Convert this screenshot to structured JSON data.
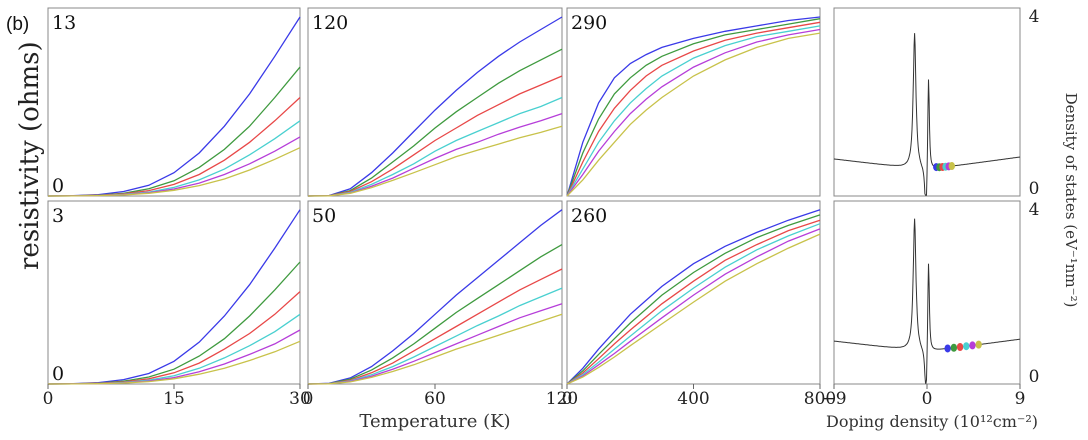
{
  "figure_tag": "(b)",
  "y_axis_title": "resistivity (ohms)",
  "x_axis_title": "Temperature (K)",
  "right_x_axis_title": "Doping density (10¹²cm⁻²)",
  "right_y_axis_title": "Density of states (eV⁻¹nm⁻²)",
  "colors": [
    "#3a3ae8",
    "#3f9a3f",
    "#e84848",
    "#49d0d0",
    "#b63ed9",
    "#c8c24a"
  ],
  "chart_data": [
    {
      "type": "line",
      "panel_label": "13",
      "y_label": "0",
      "xlim": [
        0,
        30
      ],
      "ylim": [
        0,
        1.05
      ],
      "x_ticks": [],
      "x_tick_labels": [],
      "x": [
        0,
        3,
        6,
        9,
        12,
        15,
        18,
        21,
        24,
        27,
        30
      ],
      "series": [
        {
          "values": [
            0,
            0.002,
            0.008,
            0.025,
            0.06,
            0.13,
            0.24,
            0.39,
            0.57,
            0.78,
            1.0
          ]
        },
        {
          "values": [
            0,
            0.001,
            0.005,
            0.015,
            0.04,
            0.085,
            0.16,
            0.26,
            0.39,
            0.55,
            0.72
          ]
        },
        {
          "values": [
            0,
            0.001,
            0.004,
            0.012,
            0.03,
            0.065,
            0.12,
            0.2,
            0.3,
            0.42,
            0.55
          ]
        },
        {
          "values": [
            0,
            0.001,
            0.003,
            0.009,
            0.022,
            0.048,
            0.09,
            0.15,
            0.23,
            0.32,
            0.42
          ]
        },
        {
          "values": [
            0,
            0.001,
            0.002,
            0.007,
            0.018,
            0.039,
            0.072,
            0.12,
            0.18,
            0.25,
            0.33
          ]
        },
        {
          "values": [
            0,
            0.0005,
            0.002,
            0.006,
            0.015,
            0.032,
            0.058,
            0.095,
            0.145,
            0.205,
            0.27
          ]
        }
      ]
    },
    {
      "type": "line",
      "panel_label": "120",
      "y_label": "",
      "xlim": [
        0,
        120
      ],
      "ylim": [
        0,
        1.05
      ],
      "x_ticks": [],
      "x_tick_labels": [],
      "x": [
        0,
        10,
        20,
        30,
        40,
        50,
        60,
        70,
        80,
        90,
        100,
        110,
        120
      ],
      "series": [
        {
          "values": [
            0,
            0.003,
            0.04,
            0.13,
            0.24,
            0.36,
            0.48,
            0.59,
            0.69,
            0.78,
            0.86,
            0.93,
            1.0
          ]
        },
        {
          "values": [
            0,
            0.002,
            0.03,
            0.1,
            0.19,
            0.28,
            0.38,
            0.47,
            0.55,
            0.63,
            0.7,
            0.76,
            0.82
          ]
        },
        {
          "values": [
            0,
            0.002,
            0.025,
            0.08,
            0.15,
            0.23,
            0.31,
            0.38,
            0.45,
            0.51,
            0.57,
            0.62,
            0.67
          ]
        },
        {
          "values": [
            0,
            0.001,
            0.02,
            0.065,
            0.12,
            0.18,
            0.25,
            0.31,
            0.36,
            0.41,
            0.46,
            0.5,
            0.55
          ]
        },
        {
          "values": [
            0,
            0.001,
            0.017,
            0.055,
            0.1,
            0.155,
            0.21,
            0.26,
            0.3,
            0.345,
            0.385,
            0.42,
            0.46
          ]
        },
        {
          "values": [
            0,
            0.001,
            0.015,
            0.047,
            0.087,
            0.13,
            0.175,
            0.22,
            0.255,
            0.29,
            0.325,
            0.355,
            0.39
          ]
        }
      ]
    },
    {
      "type": "line",
      "panel_label": "290",
      "y_label": "",
      "xlim": [
        0,
        800
      ],
      "ylim": [
        0,
        1.05
      ],
      "x_ticks": [],
      "x_tick_labels": [],
      "x": [
        0,
        50,
        100,
        150,
        200,
        250,
        300,
        400,
        500,
        600,
        700,
        800
      ],
      "series": [
        {
          "values": [
            0,
            0.3,
            0.52,
            0.66,
            0.74,
            0.79,
            0.83,
            0.88,
            0.92,
            0.95,
            0.98,
            1.0
          ]
        },
        {
          "values": [
            0,
            0.24,
            0.43,
            0.57,
            0.66,
            0.73,
            0.78,
            0.85,
            0.9,
            0.93,
            0.96,
            0.99
          ]
        },
        {
          "values": [
            0,
            0.19,
            0.36,
            0.49,
            0.59,
            0.67,
            0.73,
            0.81,
            0.87,
            0.91,
            0.94,
            0.97
          ]
        },
        {
          "values": [
            0,
            0.15,
            0.3,
            0.42,
            0.52,
            0.6,
            0.67,
            0.77,
            0.84,
            0.89,
            0.92,
            0.95
          ]
        },
        {
          "values": [
            0,
            0.12,
            0.25,
            0.36,
            0.46,
            0.54,
            0.61,
            0.72,
            0.8,
            0.86,
            0.9,
            0.93
          ]
        },
        {
          "values": [
            0,
            0.09,
            0.2,
            0.3,
            0.4,
            0.48,
            0.55,
            0.67,
            0.76,
            0.83,
            0.88,
            0.91
          ]
        }
      ]
    },
    {
      "type": "line",
      "panel_label": "",
      "y_label": "",
      "xlim": [
        -9,
        9
      ],
      "ylim": [
        0,
        4
      ],
      "right_ticks": [
        "4",
        "0"
      ],
      "x_ticks": [],
      "x_tick_labels": [],
      "series": [
        {
          "name": "",
          "values": []
        }
      ],
      "markers_x": [
        0.9,
        1.2,
        1.5,
        1.8,
        2.1,
        2.4
      ]
    },
    {
      "type": "line",
      "panel_label": "3",
      "y_label": "0",
      "xlim": [
        0,
        30
      ],
      "ylim": [
        0,
        1.05
      ],
      "x_ticks": [
        0,
        15,
        30
      ],
      "x_tick_labels": [
        "0",
        "15",
        "30"
      ],
      "x": [
        0,
        3,
        6,
        9,
        12,
        15,
        18,
        21,
        24,
        27,
        30
      ],
      "series": [
        {
          "values": [
            0,
            0.002,
            0.008,
            0.025,
            0.06,
            0.13,
            0.24,
            0.39,
            0.57,
            0.78,
            1.0
          ]
        },
        {
          "values": [
            0,
            0.001,
            0.005,
            0.016,
            0.04,
            0.085,
            0.16,
            0.26,
            0.39,
            0.54,
            0.7
          ]
        },
        {
          "values": [
            0,
            0.001,
            0.004,
            0.012,
            0.03,
            0.064,
            0.12,
            0.2,
            0.29,
            0.4,
            0.53
          ]
        },
        {
          "values": [
            0,
            0.001,
            0.003,
            0.009,
            0.022,
            0.047,
            0.09,
            0.15,
            0.22,
            0.3,
            0.4
          ]
        },
        {
          "values": [
            0,
            0.001,
            0.002,
            0.007,
            0.017,
            0.037,
            0.07,
            0.115,
            0.17,
            0.23,
            0.31
          ]
        },
        {
          "values": [
            0,
            0.0005,
            0.002,
            0.006,
            0.014,
            0.03,
            0.056,
            0.09,
            0.135,
            0.185,
            0.245
          ]
        }
      ]
    },
    {
      "type": "line",
      "panel_label": "50",
      "y_label": "",
      "xlim": [
        0,
        120
      ],
      "ylim": [
        0,
        1.05
      ],
      "x_ticks": [
        0,
        60,
        120
      ],
      "x_tick_labels": [
        "0",
        "60",
        "120"
      ],
      "x": [
        0,
        10,
        20,
        30,
        40,
        50,
        60,
        70,
        80,
        90,
        100,
        110,
        120
      ],
      "series": [
        {
          "values": [
            0,
            0.004,
            0.035,
            0.1,
            0.19,
            0.29,
            0.4,
            0.51,
            0.61,
            0.71,
            0.81,
            0.91,
            1.0
          ]
        },
        {
          "values": [
            0,
            0.003,
            0.028,
            0.08,
            0.15,
            0.23,
            0.32,
            0.41,
            0.49,
            0.57,
            0.65,
            0.73,
            0.8
          ]
        },
        {
          "values": [
            0,
            0.002,
            0.022,
            0.064,
            0.12,
            0.19,
            0.26,
            0.33,
            0.4,
            0.47,
            0.54,
            0.6,
            0.66
          ]
        },
        {
          "values": [
            0,
            0.002,
            0.018,
            0.053,
            0.1,
            0.155,
            0.215,
            0.275,
            0.335,
            0.39,
            0.45,
            0.5,
            0.55
          ]
        },
        {
          "values": [
            0,
            0.001,
            0.015,
            0.045,
            0.085,
            0.13,
            0.18,
            0.23,
            0.28,
            0.33,
            0.38,
            0.42,
            0.46
          ]
        },
        {
          "values": [
            0,
            0.001,
            0.012,
            0.038,
            0.072,
            0.11,
            0.155,
            0.2,
            0.24,
            0.28,
            0.32,
            0.36,
            0.4
          ]
        }
      ]
    },
    {
      "type": "line",
      "panel_label": "260",
      "y_label": "",
      "xlim": [
        0,
        800
      ],
      "ylim": [
        0,
        1.05
      ],
      "x_ticks": [
        0,
        400,
        800
      ],
      "x_tick_labels": [
        "0",
        "400",
        "800"
      ],
      "x": [
        0,
        50,
        100,
        150,
        200,
        300,
        400,
        500,
        600,
        700,
        800
      ],
      "series": [
        {
          "values": [
            0,
            0.09,
            0.2,
            0.3,
            0.4,
            0.56,
            0.69,
            0.79,
            0.87,
            0.94,
            1.0
          ]
        },
        {
          "values": [
            0,
            0.075,
            0.17,
            0.26,
            0.35,
            0.51,
            0.64,
            0.75,
            0.84,
            0.91,
            0.97
          ]
        },
        {
          "values": [
            0,
            0.063,
            0.145,
            0.23,
            0.31,
            0.46,
            0.59,
            0.71,
            0.8,
            0.88,
            0.94
          ]
        },
        {
          "values": [
            0,
            0.054,
            0.125,
            0.2,
            0.275,
            0.42,
            0.55,
            0.67,
            0.77,
            0.85,
            0.92
          ]
        },
        {
          "values": [
            0,
            0.046,
            0.11,
            0.175,
            0.245,
            0.38,
            0.51,
            0.63,
            0.73,
            0.82,
            0.89
          ]
        },
        {
          "values": [
            0,
            0.04,
            0.095,
            0.155,
            0.22,
            0.345,
            0.47,
            0.59,
            0.69,
            0.78,
            0.86
          ]
        }
      ]
    },
    {
      "type": "line",
      "panel_label": "",
      "y_label": "",
      "xlim": [
        -9,
        9
      ],
      "ylim": [
        0,
        4
      ],
      "right_ticks": [
        "4",
        "0"
      ],
      "x_ticks": [
        -9,
        0,
        9
      ],
      "x_tick_labels": [
        "−9",
        "0",
        "9"
      ],
      "series": [
        {
          "name": "",
          "values": []
        }
      ],
      "markers_x": [
        2.0,
        2.6,
        3.2,
        3.8,
        4.4,
        5.0
      ]
    }
  ]
}
